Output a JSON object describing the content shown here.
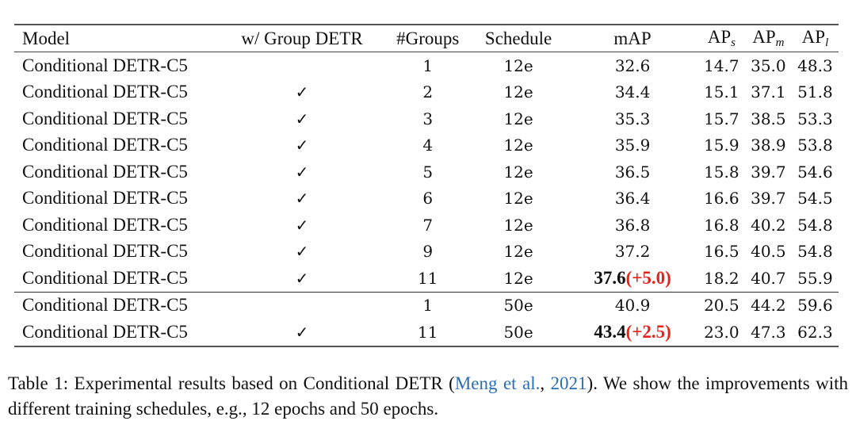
{
  "table": {
    "headers": {
      "model": "Model",
      "group_detr": "w/ Group DETR",
      "groups": "#Groups",
      "schedule": "Schedule",
      "map": "mAP",
      "aps_base": "AP",
      "aps_sub": "s",
      "apm_base": "AP",
      "apm_sub": "m",
      "apl_base": "AP",
      "apl_sub": "l"
    },
    "check_glyph": "✓",
    "rows": [
      {
        "model": "Conditional DETR-C5",
        "group": "",
        "groups": "1",
        "schedule": "12e",
        "map": "32.6",
        "delta": "",
        "aps": "14.7",
        "apm": "35.0",
        "apl": "48.3"
      },
      {
        "model": "Conditional DETR-C5",
        "group": "✓",
        "groups": "2",
        "schedule": "12e",
        "map": "34.4",
        "delta": "",
        "aps": "15.1",
        "apm": "37.1",
        "apl": "51.8"
      },
      {
        "model": "Conditional DETR-C5",
        "group": "✓",
        "groups": "3",
        "schedule": "12e",
        "map": "35.3",
        "delta": "",
        "aps": "15.7",
        "apm": "38.5",
        "apl": "53.3"
      },
      {
        "model": "Conditional DETR-C5",
        "group": "✓",
        "groups": "4",
        "schedule": "12e",
        "map": "35.9",
        "delta": "",
        "aps": "15.9",
        "apm": "38.9",
        "apl": "53.8"
      },
      {
        "model": "Conditional DETR-C5",
        "group": "✓",
        "groups": "5",
        "schedule": "12e",
        "map": "36.5",
        "delta": "",
        "aps": "15.8",
        "apm": "39.7",
        "apl": "54.6"
      },
      {
        "model": "Conditional DETR-C5",
        "group": "✓",
        "groups": "6",
        "schedule": "12e",
        "map": "36.4",
        "delta": "",
        "aps": "16.6",
        "apm": "39.7",
        "apl": "54.5"
      },
      {
        "model": "Conditional DETR-C5",
        "group": "✓",
        "groups": "7",
        "schedule": "12e",
        "map": "36.8",
        "delta": "",
        "aps": "16.8",
        "apm": "40.2",
        "apl": "54.8"
      },
      {
        "model": "Conditional DETR-C5",
        "group": "✓",
        "groups": "9",
        "schedule": "12e",
        "map": "37.2",
        "delta": "",
        "aps": "16.5",
        "apm": "40.5",
        "apl": "54.8"
      },
      {
        "model": "Conditional DETR-C5",
        "group": "✓",
        "groups": "11",
        "schedule": "12e",
        "map": "37.6",
        "delta": "(+5.0)",
        "aps": "18.2",
        "apm": "40.7",
        "apl": "55.9"
      },
      {
        "model": "Conditional DETR-C5",
        "group": "",
        "groups": "1",
        "schedule": "50e",
        "map": "40.9",
        "delta": "",
        "aps": "20.5",
        "apm": "44.2",
        "apl": "59.6"
      },
      {
        "model": "Conditional DETR-C5",
        "group": "✓",
        "groups": "11",
        "schedule": "50e",
        "map": "43.4",
        "delta": "(+2.5)",
        "aps": "23.0",
        "apm": "47.3",
        "apl": "62.3"
      }
    ]
  },
  "caption": {
    "prefix": "Table 1: Experimental results based on Conditional DETR (",
    "cite_author": "Meng et al.",
    "cite_sep": ", ",
    "cite_year": "2021",
    "suffix": "). We show the improvements with different training schedules, e.g., 12 epochs and 50 epochs."
  },
  "colors": {
    "delta": "#e8231b",
    "citation": "#2a6fb5"
  }
}
